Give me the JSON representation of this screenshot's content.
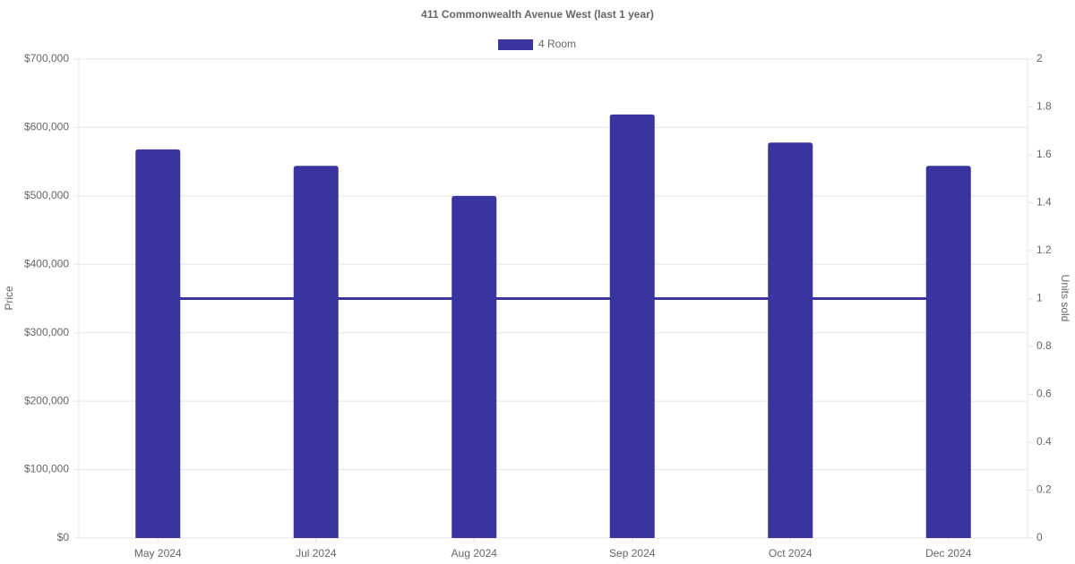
{
  "chart_data": {
    "type": "bar",
    "title": "411 Commonwealth Avenue West (last 1 year)",
    "y_label": "Price",
    "y2_label": "Units sold",
    "categories": [
      "May 2024",
      "Jul 2024",
      "Aug 2024",
      "Sep 2024",
      "Oct 2024",
      "Dec 2024"
    ],
    "series": [
      {
        "name": "4 Room",
        "type": "bar",
        "color": "#3934a0",
        "values": [
          568000,
          544000,
          500000,
          619000,
          578000,
          544000
        ]
      },
      {
        "type": "line",
        "axis": "y2",
        "color": "#3934a0",
        "values": [
          1,
          1,
          1,
          1,
          1,
          1
        ]
      }
    ],
    "ylim": [
      0,
      700000
    ],
    "yticks": [
      {
        "value": 0,
        "label": "$0"
      },
      {
        "value": 100000,
        "label": "$100,000"
      },
      {
        "value": 200000,
        "label": "$200,000"
      },
      {
        "value": 300000,
        "label": "$300,000"
      },
      {
        "value": 400000,
        "label": "$400,000"
      },
      {
        "value": 500000,
        "label": "$500,000"
      },
      {
        "value": 600000,
        "label": "$600,000"
      },
      {
        "value": 700000,
        "label": "$700,000"
      }
    ],
    "y2lim": [
      0,
      2
    ],
    "y2ticks": [
      0,
      0.2,
      0.4,
      0.6,
      0.8,
      1,
      1.2,
      1.4,
      1.6,
      1.8,
      2
    ],
    "grid": true,
    "legend": "top"
  }
}
